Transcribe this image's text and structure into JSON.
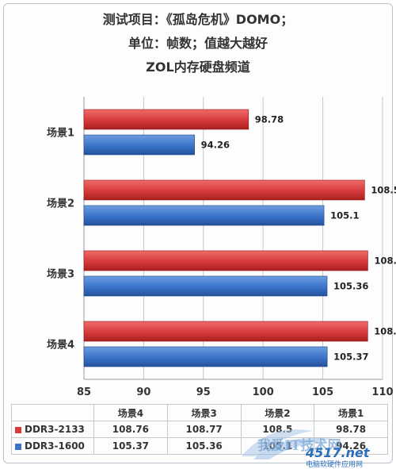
{
  "chart_data": {
    "type": "bar",
    "orientation": "horizontal",
    "title_lines": [
      "测试项目：《孤岛危机》DOMO；",
      "单位：帧数；值越大越好",
      "ZOL内存硬盘频道"
    ],
    "categories": [
      "场景1",
      "场景2",
      "场景3",
      "场景4"
    ],
    "series": [
      {
        "name": "DDR3-2133",
        "color": "#d63a3a",
        "values": [
          98.78,
          108.5,
          108.77,
          108.76
        ]
      },
      {
        "name": "DDR3-1600",
        "color": "#3a73c9",
        "values": [
          94.26,
          105.1,
          105.36,
          105.37
        ]
      }
    ],
    "xlim": [
      85,
      110
    ],
    "xticks": [
      85,
      90,
      95,
      100,
      105,
      110
    ],
    "grid": true,
    "legend": "data-table-below"
  },
  "table": {
    "headers": [
      "场景4",
      "场景3",
      "场景2",
      "场景1"
    ],
    "rows": [
      {
        "name": "DDR3-2133",
        "color": "#d63a3a",
        "values": [
          "108.76",
          "108.77",
          "108.5",
          "98.78"
        ]
      },
      {
        "name": "DDR3-1600",
        "color": "#3a73c9",
        "values": [
          "105.37",
          "105.36",
          "105.1",
          "94.26"
        ]
      }
    ]
  },
  "watermark": {
    "text": "我爱IT技术网",
    "brand": "4517.net",
    "subtitle": "电脑软硬件应用网"
  }
}
